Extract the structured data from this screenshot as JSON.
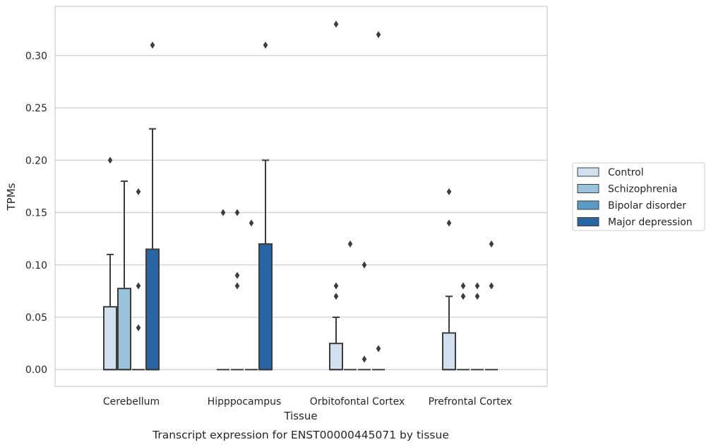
{
  "chart_data": {
    "type": "box",
    "caption": "Transcript expression for ENST00000445071 by tissue",
    "xlabel": "Tissue",
    "ylabel": "TPMs",
    "ylim": [
      -0.016,
      0.347
    ],
    "yticks": [
      "0.00",
      "0.05",
      "0.10",
      "0.15",
      "0.20",
      "0.25",
      "0.30"
    ],
    "grid": true,
    "legend_position": "right",
    "categories": [
      "Cerebellum",
      "Hipppocampus",
      "Orbitofontal Cortex",
      "Prefrontal Cortex"
    ],
    "series": [
      {
        "name": "Control",
        "color": "#d1e0ef",
        "boxes": [
          {
            "q1": 0.0,
            "median": 0.0,
            "q3": 0.06,
            "whisker_low": 0.0,
            "whisker_high": 0.11,
            "outliers": [
              0.2
            ]
          },
          {
            "q1": 0.0,
            "median": 0.0,
            "q3": 0.0,
            "whisker_low": 0.0,
            "whisker_high": 0.0,
            "outliers": [
              0.15
            ]
          },
          {
            "q1": 0.0,
            "median": 0.0,
            "q3": 0.025,
            "whisker_low": 0.0,
            "whisker_high": 0.05,
            "outliers": [
              0.33,
              0.08,
              0.07
            ]
          },
          {
            "q1": 0.0,
            "median": 0.0,
            "q3": 0.035,
            "whisker_low": 0.0,
            "whisker_high": 0.07,
            "outliers": [
              0.17,
              0.14
            ]
          }
        ]
      },
      {
        "name": "Schizophrenia",
        "color": "#9ac3dc",
        "boxes": [
          {
            "q1": 0.0,
            "median": 0.0,
            "q3": 0.0775,
            "whisker_low": 0.0,
            "whisker_high": 0.18,
            "outliers": []
          },
          {
            "q1": 0.0,
            "median": 0.0,
            "q3": 0.0,
            "whisker_low": 0.0,
            "whisker_high": 0.0,
            "outliers": [
              0.15,
              0.09,
              0.08
            ]
          },
          {
            "q1": 0.0,
            "median": 0.0,
            "q3": 0.0,
            "whisker_low": 0.0,
            "whisker_high": 0.0,
            "outliers": [
              0.12
            ]
          },
          {
            "q1": 0.0,
            "median": 0.0,
            "q3": 0.0,
            "whisker_low": 0.0,
            "whisker_high": 0.0,
            "outliers": [
              0.08,
              0.07
            ]
          }
        ]
      },
      {
        "name": "Bipolar disorder",
        "color": "#5b9ac7",
        "boxes": [
          {
            "q1": 0.0,
            "median": 0.0,
            "q3": 0.0,
            "whisker_low": 0.0,
            "whisker_high": 0.0,
            "outliers": [
              0.17,
              0.08,
              0.04
            ]
          },
          {
            "q1": 0.0,
            "median": 0.0,
            "q3": 0.0,
            "whisker_low": 0.0,
            "whisker_high": 0.0,
            "outliers": [
              0.14
            ]
          },
          {
            "q1": 0.0,
            "median": 0.0,
            "q3": 0.0,
            "whisker_low": 0.0,
            "whisker_high": 0.0,
            "outliers": [
              0.1,
              0.01
            ]
          },
          {
            "q1": 0.0,
            "median": 0.0,
            "q3": 0.0,
            "whisker_low": 0.0,
            "whisker_high": 0.0,
            "outliers": [
              0.08,
              0.07
            ]
          }
        ]
      },
      {
        "name": "Major depression",
        "color": "#2a65a3",
        "boxes": [
          {
            "q1": 0.0,
            "median": 0.0,
            "q3": 0.115,
            "whisker_low": 0.0,
            "whisker_high": 0.23,
            "outliers": [
              0.31
            ]
          },
          {
            "q1": 0.0,
            "median": 0.0,
            "q3": 0.12,
            "whisker_low": 0.0,
            "whisker_high": 0.2,
            "outliers": [
              0.31
            ]
          },
          {
            "q1": 0.0,
            "median": 0.0,
            "q3": 0.0,
            "whisker_low": 0.0,
            "whisker_high": 0.0,
            "outliers": [
              0.32,
              0.02
            ]
          },
          {
            "q1": 0.0,
            "median": 0.0,
            "q3": 0.0,
            "whisker_low": 0.0,
            "whisker_high": 0.0,
            "outliers": [
              0.12,
              0.08
            ]
          }
        ]
      }
    ]
  }
}
